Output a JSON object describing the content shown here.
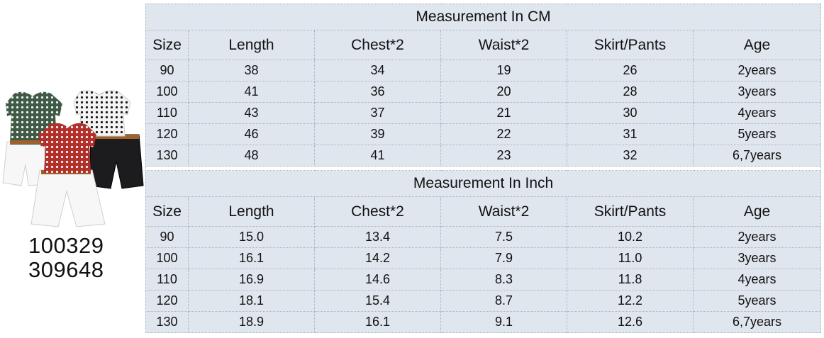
{
  "product_codes": [
    "100329",
    "309648"
  ],
  "tables": [
    {
      "title": "Measurement In CM",
      "headers": [
        "Size",
        "Length",
        "Chest*2",
        "Waist*2",
        "Skirt/Pants",
        "Age"
      ],
      "rows": [
        [
          "90",
          "38",
          "34",
          "19",
          "26",
          "2years"
        ],
        [
          "100",
          "41",
          "36",
          "20",
          "28",
          "3years"
        ],
        [
          "110",
          "43",
          "37",
          "21",
          "30",
          "4years"
        ],
        [
          "120",
          "46",
          "39",
          "22",
          "31",
          "5years"
        ],
        [
          "130",
          "48",
          "41",
          "23",
          "32",
          "6,7years"
        ]
      ]
    },
    {
      "title": "Measurement In Inch",
      "headers": [
        "Size",
        "Length",
        "Chest*2",
        "Waist*2",
        "Skirt/Pants",
        "Age"
      ],
      "rows": [
        [
          "90",
          "15.0",
          "13.4",
          "7.5",
          "10.2",
          "2years"
        ],
        [
          "100",
          "16.1",
          "14.2",
          "7.9",
          "11.0",
          "3years"
        ],
        [
          "110",
          "16.9",
          "14.6",
          "8.3",
          "11.8",
          "4years"
        ],
        [
          "120",
          "18.1",
          "15.4",
          "8.7",
          "12.2",
          "5years"
        ],
        [
          "130",
          "18.9",
          "16.1",
          "9.1",
          "12.6",
          "6,7years"
        ]
      ]
    }
  ],
  "colors": {
    "table_bg": "#dfe6ee",
    "grid": "#a9b2bd",
    "top_green": "#3f5a45",
    "top_red": "#b3302a",
    "top_white": "#f4f4f4",
    "shorts_black": "#1c1c1e",
    "shorts_white": "#f7f7f7",
    "belt": "#a0622d"
  }
}
